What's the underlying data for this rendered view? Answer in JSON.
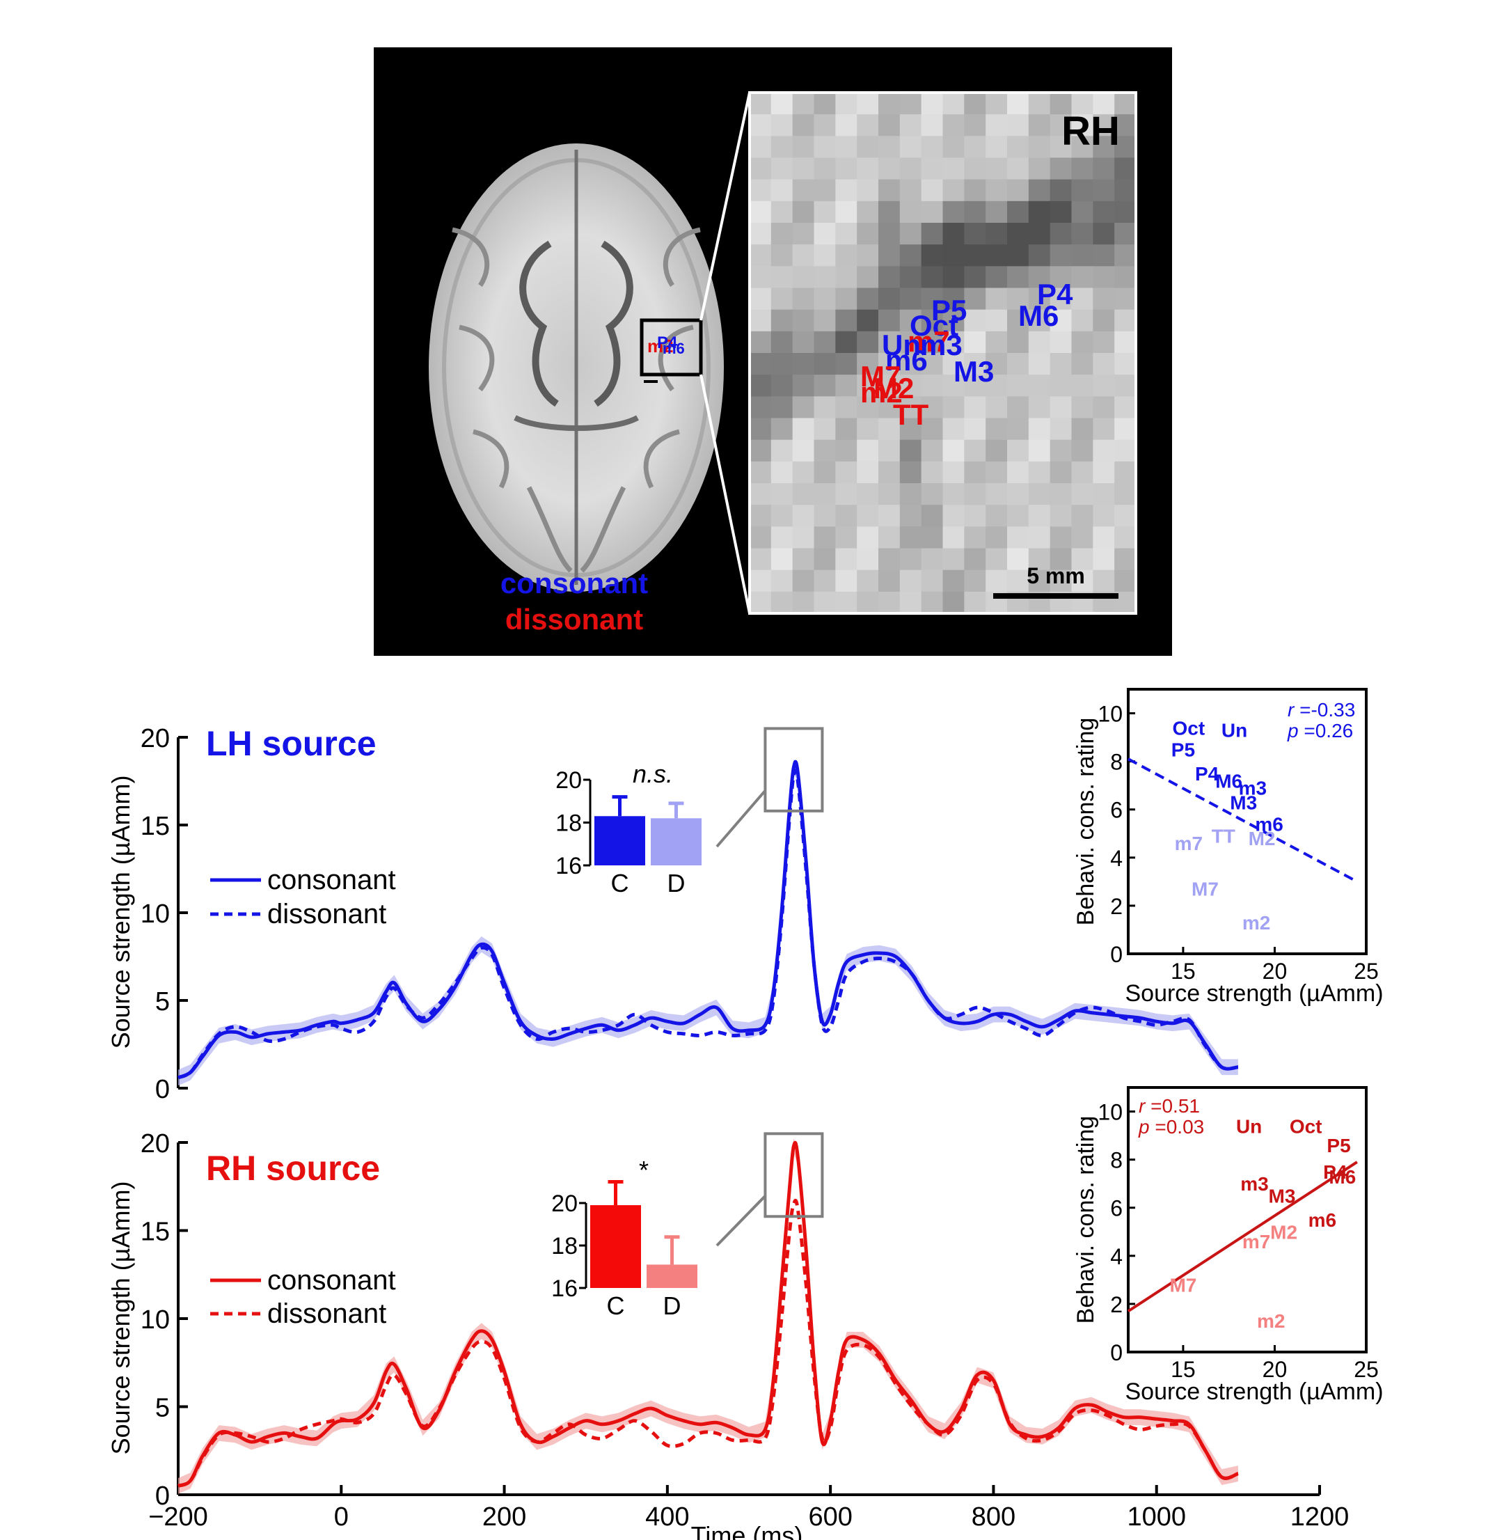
{
  "brain_panel": {
    "hemisphere_label": "RH",
    "scale_label": "5 mm",
    "legend_consonant": "consonant",
    "legend_dissonant": "dissonant",
    "colors": {
      "consonant": "#1414e6",
      "dissonant": "#e60f0f",
      "background": "#000000"
    },
    "dipole_labels_consonant": [
      "P4",
      "M6",
      "P5",
      "Oct",
      "Un",
      "m3",
      "m6",
      "M3"
    ],
    "dipole_labels_dissonant": [
      "M7",
      "m2",
      "M2",
      "m7",
      "TT"
    ]
  },
  "chart_data": [
    {
      "type": "line",
      "panel": "LH",
      "title": "LH source",
      "xlabel": "Time (ms)",
      "ylabel": "Source strength (µAmm)",
      "xlim": [
        -200,
        1200
      ],
      "ylim": [
        0,
        20
      ],
      "xticks": [
        "−200",
        "0",
        "200",
        "400",
        "600",
        "800",
        "1000",
        "1200"
      ],
      "yticks": [
        "0",
        "5",
        "10",
        "15",
        "20"
      ],
      "color": "#1414e6",
      "shade_color": "#b4b4f2",
      "series": [
        {
          "name": "consonant",
          "style": "solid",
          "x": [
            -200,
            -185,
            -170,
            -150,
            -130,
            -110,
            -90,
            -70,
            -50,
            -30,
            -10,
            0,
            20,
            40,
            55,
            65,
            80,
            100,
            120,
            140,
            160,
            172,
            185,
            200,
            220,
            240,
            260,
            280,
            300,
            320,
            340,
            360,
            380,
            400,
            420,
            440,
            460,
            480,
            500,
            520,
            530,
            540,
            550,
            555,
            560,
            570,
            580,
            590,
            600,
            610,
            620,
            640,
            660,
            680,
            700,
            720,
            740,
            760,
            780,
            800,
            820,
            840,
            860,
            880,
            900,
            920,
            940,
            960,
            980,
            1000,
            1020,
            1040,
            1060,
            1080,
            1100
          ],
          "y": [
            0.6,
            0.9,
            1.8,
            3.0,
            3.2,
            2.9,
            3.1,
            3.2,
            3.3,
            3.6,
            3.8,
            3.7,
            3.9,
            4.3,
            5.5,
            6.0,
            4.8,
            3.8,
            4.5,
            5.8,
            7.6,
            8.2,
            7.8,
            6.0,
            3.8,
            3.0,
            2.8,
            3.1,
            3.4,
            3.6,
            3.3,
            3.6,
            4.0,
            3.8,
            3.7,
            4.2,
            4.6,
            3.4,
            3.3,
            3.6,
            5.5,
            10.0,
            16.0,
            18.3,
            18.0,
            13.0,
            7.0,
            3.8,
            4.2,
            6.0,
            7.2,
            7.6,
            7.7,
            7.5,
            6.5,
            5.0,
            4.0,
            3.7,
            3.8,
            4.2,
            4.2,
            3.8,
            3.5,
            3.9,
            4.4,
            4.3,
            4.2,
            4.1,
            4.0,
            3.8,
            3.7,
            3.8,
            2.5,
            1.2,
            1.2
          ]
        },
        {
          "name": "dissonant",
          "style": "dashed",
          "x": [
            -200,
            -185,
            -170,
            -150,
            -130,
            -110,
            -90,
            -70,
            -50,
            -30,
            -10,
            0,
            20,
            40,
            55,
            65,
            80,
            100,
            120,
            140,
            160,
            172,
            185,
            200,
            220,
            240,
            260,
            280,
            300,
            320,
            340,
            360,
            380,
            400,
            420,
            440,
            460,
            480,
            500,
            520,
            530,
            540,
            550,
            555,
            560,
            570,
            580,
            590,
            600,
            610,
            620,
            640,
            660,
            680,
            700,
            720,
            740,
            760,
            780,
            800,
            820,
            840,
            860,
            880,
            900,
            920,
            940,
            960,
            980,
            1000,
            1020,
            1040,
            1060,
            1080,
            1100
          ],
          "y": [
            0.6,
            0.9,
            1.9,
            3.1,
            3.5,
            3.2,
            2.7,
            2.8,
            3.2,
            3.5,
            3.6,
            3.4,
            3.2,
            3.8,
            5.2,
            5.7,
            4.7,
            4.0,
            4.8,
            6.0,
            7.4,
            8.0,
            7.6,
            5.7,
            3.6,
            2.8,
            3.2,
            3.4,
            3.2,
            3.3,
            3.6,
            4.2,
            3.6,
            3.2,
            3.1,
            3.0,
            3.2,
            3.0,
            3.1,
            3.3,
            5.0,
            9.5,
            15.5,
            17.8,
            17.5,
            12.5,
            7.0,
            3.6,
            3.5,
            5.0,
            6.5,
            7.2,
            7.4,
            7.2,
            6.5,
            5.0,
            4.0,
            4.2,
            4.6,
            4.3,
            3.8,
            3.4,
            3.0,
            3.6,
            4.3,
            4.6,
            4.4,
            4.0,
            3.8,
            3.6,
            3.8,
            3.9,
            2.4,
            1.2,
            1.2
          ]
        }
      ],
      "inset_bar": {
        "categories": [
          "C",
          "D"
        ],
        "values": [
          18.3,
          18.2
        ],
        "errors": [
          0.9,
          0.7
        ],
        "ylim": [
          16,
          20
        ],
        "yticks": [
          "16",
          "18",
          "20"
        ],
        "significance": "n.s.",
        "colors": [
          "#1414e6",
          "#a2a2f4"
        ]
      },
      "inset_scatter": {
        "xlabel": "Source strength (µAmm)",
        "ylabel": "Behavi. cons. rating",
        "xlim": [
          12,
          25
        ],
        "ylim": [
          0,
          11
        ],
        "xticks": [
          "15",
          "20",
          "25"
        ],
        "yticks": [
          "0",
          "2",
          "4",
          "6",
          "8",
          "10"
        ],
        "r_text": "=-0.33",
        "p_text": "=0.26",
        "fit_line": {
          "style": "dashed",
          "x": [
            12,
            24.5
          ],
          "y": [
            8.1,
            3.0
          ]
        },
        "points": [
          {
            "label": "Oct",
            "x": 15.3,
            "y": 9.4,
            "group": "consonant"
          },
          {
            "label": "Un",
            "x": 17.8,
            "y": 9.3,
            "group": "consonant"
          },
          {
            "label": "P5",
            "x": 15.0,
            "y": 8.5,
            "group": "consonant"
          },
          {
            "label": "P4",
            "x": 16.3,
            "y": 7.5,
            "group": "consonant"
          },
          {
            "label": "M6",
            "x": 17.5,
            "y": 7.2,
            "group": "consonant"
          },
          {
            "label": "m3",
            "x": 18.8,
            "y": 6.9,
            "group": "consonant"
          },
          {
            "label": "M3",
            "x": 18.3,
            "y": 6.3,
            "group": "consonant"
          },
          {
            "label": "m6",
            "x": 19.7,
            "y": 5.4,
            "group": "consonant"
          },
          {
            "label": "m7",
            "x": 15.3,
            "y": 4.6,
            "group": "dissonant"
          },
          {
            "label": "TT",
            "x": 17.2,
            "y": 4.9,
            "group": "dissonant"
          },
          {
            "label": "M2",
            "x": 19.3,
            "y": 4.8,
            "group": "dissonant"
          },
          {
            "label": "M7",
            "x": 16.2,
            "y": 2.7,
            "group": "dissonant"
          },
          {
            "label": "m2",
            "x": 19.0,
            "y": 1.3,
            "group": "dissonant"
          }
        ]
      }
    },
    {
      "type": "line",
      "panel": "RH",
      "title": "RH source",
      "xlabel": "Time (ms)",
      "ylabel": "Source strength (µAmm)",
      "xlim": [
        -200,
        1200
      ],
      "ylim": [
        0,
        20
      ],
      "xticks": [
        "−200",
        "0",
        "200",
        "400",
        "600",
        "800",
        "1000",
        "1200"
      ],
      "yticks": [
        "0",
        "5",
        "10",
        "15",
        "20"
      ],
      "color": "#e60f0f",
      "shade_color": "#f4a8a8",
      "series": [
        {
          "name": "consonant",
          "style": "solid",
          "x": [
            -200,
            -185,
            -170,
            -150,
            -130,
            -110,
            -90,
            -70,
            -50,
            -30,
            -10,
            0,
            20,
            40,
            55,
            65,
            80,
            100,
            120,
            140,
            160,
            172,
            185,
            200,
            220,
            240,
            260,
            280,
            300,
            320,
            340,
            360,
            380,
            400,
            420,
            440,
            460,
            480,
            500,
            520,
            530,
            540,
            550,
            555,
            560,
            570,
            580,
            590,
            600,
            610,
            620,
            640,
            660,
            680,
            700,
            720,
            740,
            760,
            780,
            800,
            820,
            840,
            860,
            880,
            900,
            920,
            940,
            960,
            980,
            1000,
            1020,
            1040,
            1060,
            1080,
            1100
          ],
          "y": [
            0.5,
            0.8,
            2.2,
            3.5,
            3.4,
            3.0,
            3.3,
            3.5,
            3.3,
            3.2,
            4.0,
            4.2,
            4.3,
            5.2,
            7.0,
            7.4,
            6.0,
            3.8,
            4.8,
            7.0,
            8.8,
            9.3,
            8.8,
            7.0,
            4.0,
            3.0,
            3.3,
            3.8,
            4.2,
            4.0,
            4.2,
            4.6,
            4.9,
            4.5,
            4.2,
            4.0,
            4.1,
            3.8,
            3.4,
            3.7,
            6.5,
            12.0,
            17.5,
            19.8,
            19.2,
            14.0,
            7.5,
            3.0,
            4.2,
            7.0,
            8.8,
            8.8,
            8.0,
            6.5,
            5.3,
            4.0,
            3.6,
            4.8,
            6.8,
            6.5,
            4.0,
            3.4,
            3.3,
            3.8,
            4.9,
            5.1,
            4.7,
            4.4,
            4.4,
            4.3,
            4.2,
            4.0,
            2.5,
            1.0,
            1.2
          ]
        },
        {
          "name": "dissonant",
          "style": "dashed",
          "x": [
            -200,
            -185,
            -170,
            -150,
            -130,
            -110,
            -90,
            -70,
            -50,
            -30,
            -10,
            0,
            20,
            40,
            55,
            65,
            80,
            100,
            120,
            140,
            160,
            172,
            185,
            200,
            220,
            240,
            260,
            280,
            300,
            320,
            340,
            360,
            380,
            400,
            420,
            440,
            460,
            480,
            500,
            520,
            530,
            540,
            550,
            555,
            560,
            570,
            580,
            590,
            600,
            610,
            620,
            640,
            660,
            680,
            700,
            720,
            740,
            760,
            780,
            800,
            820,
            840,
            860,
            880,
            900,
            920,
            940,
            960,
            980,
            1000,
            1020,
            1040,
            1060,
            1080,
            1100
          ],
          "y": [
            0.5,
            0.8,
            2.1,
            3.4,
            3.5,
            3.3,
            3.0,
            3.2,
            3.7,
            4.0,
            4.2,
            4.3,
            4.1,
            4.6,
            6.2,
            6.8,
            5.7,
            3.9,
            4.9,
            6.8,
            8.3,
            8.7,
            8.3,
            6.6,
            3.8,
            3.0,
            3.5,
            4.0,
            3.4,
            3.2,
            3.7,
            4.2,
            3.6,
            2.8,
            2.9,
            3.5,
            3.5,
            3.1,
            3.1,
            3.2,
            5.5,
            10.0,
            15.0,
            16.5,
            16.2,
            12.0,
            6.8,
            3.2,
            3.8,
            6.5,
            8.2,
            8.5,
            7.8,
            6.3,
            5.0,
            4.0,
            3.4,
            4.5,
            6.5,
            6.3,
            4.1,
            3.2,
            3.1,
            3.6,
            4.6,
            4.8,
            4.5,
            4.0,
            3.7,
            3.9,
            4.0,
            3.9,
            2.5,
            1.0,
            1.2
          ]
        }
      ],
      "inset_bar": {
        "categories": [
          "C",
          "D"
        ],
        "values": [
          19.9,
          17.1
        ],
        "errors": [
          1.1,
          1.3
        ],
        "ylim": [
          16,
          20
        ],
        "yticks": [
          "16",
          "18",
          "20"
        ],
        "significance": "*",
        "colors": [
          "#f50a0a",
          "#f48080"
        ]
      },
      "inset_scatter": {
        "xlabel": "Source strength (µAmm)",
        "ylabel": "Behavi. cons. rating",
        "xlim": [
          12,
          25
        ],
        "ylim": [
          0,
          11
        ],
        "xticks": [
          "15",
          "20",
          "25"
        ],
        "yticks": [
          "0",
          "2",
          "4",
          "6",
          "8",
          "10"
        ],
        "r_text": "=0.51",
        "p_text": "=0.03",
        "fit_line": {
          "style": "solid",
          "x": [
            12,
            24.5
          ],
          "y": [
            1.7,
            7.9
          ]
        },
        "points": [
          {
            "label": "Un",
            "x": 18.6,
            "y": 9.4,
            "group": "consonant"
          },
          {
            "label": "Oct",
            "x": 21.7,
            "y": 9.4,
            "group": "consonant"
          },
          {
            "label": "P5",
            "x": 23.5,
            "y": 8.6,
            "group": "consonant"
          },
          {
            "label": "P4",
            "x": 23.3,
            "y": 7.5,
            "group": "consonant"
          },
          {
            "label": "M6",
            "x": 23.7,
            "y": 7.3,
            "group": "consonant"
          },
          {
            "label": "m3",
            "x": 18.9,
            "y": 7.0,
            "group": "consonant"
          },
          {
            "label": "M3",
            "x": 20.4,
            "y": 6.5,
            "group": "consonant"
          },
          {
            "label": "m6",
            "x": 22.6,
            "y": 5.5,
            "group": "consonant"
          },
          {
            "label": "m7",
            "x": 19.0,
            "y": 4.6,
            "group": "dissonant"
          },
          {
            "label": "M2",
            "x": 20.5,
            "y": 5.0,
            "group": "dissonant"
          },
          {
            "label": "M7",
            "x": 15.0,
            "y": 2.8,
            "group": "dissonant"
          },
          {
            "label": "m2",
            "x": 19.8,
            "y": 1.3,
            "group": "dissonant"
          }
        ]
      }
    }
  ]
}
